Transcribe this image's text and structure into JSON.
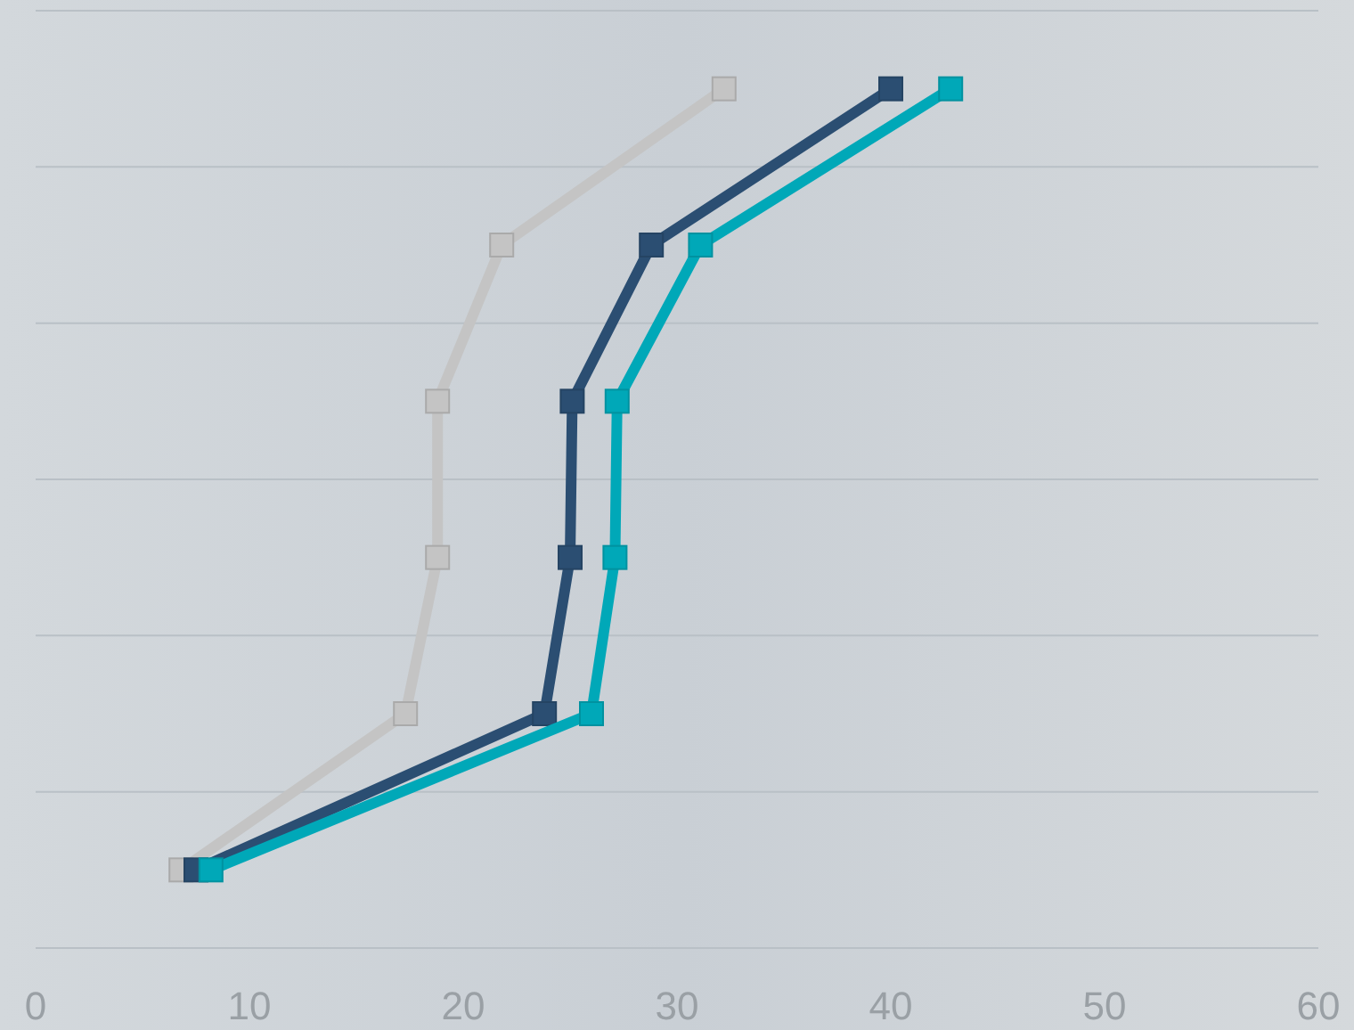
{
  "chart_data": {
    "type": "line",
    "orientation": "horizontal",
    "categories": [
      null,
      null,
      null,
      null,
      null,
      null
    ],
    "series": [
      {
        "color": "#c4c4c4",
        "values": [
          32.2,
          21.8,
          18.8,
          18.8,
          17.3,
          6.8
        ]
      },
      {
        "color": "#2b4e72",
        "values": [
          40,
          28.8,
          25.1,
          25,
          23.8,
          7.5
        ]
      },
      {
        "color": "#00a8b8",
        "values": [
          42.8,
          31.1,
          27.2,
          27.1,
          26,
          8.2
        ]
      }
    ],
    "xlim": [
      0,
      60
    ],
    "xticks": [
      0,
      10,
      20,
      30,
      40,
      50,
      60
    ],
    "grid": "y",
    "marker": "square",
    "line_style": "solid"
  }
}
